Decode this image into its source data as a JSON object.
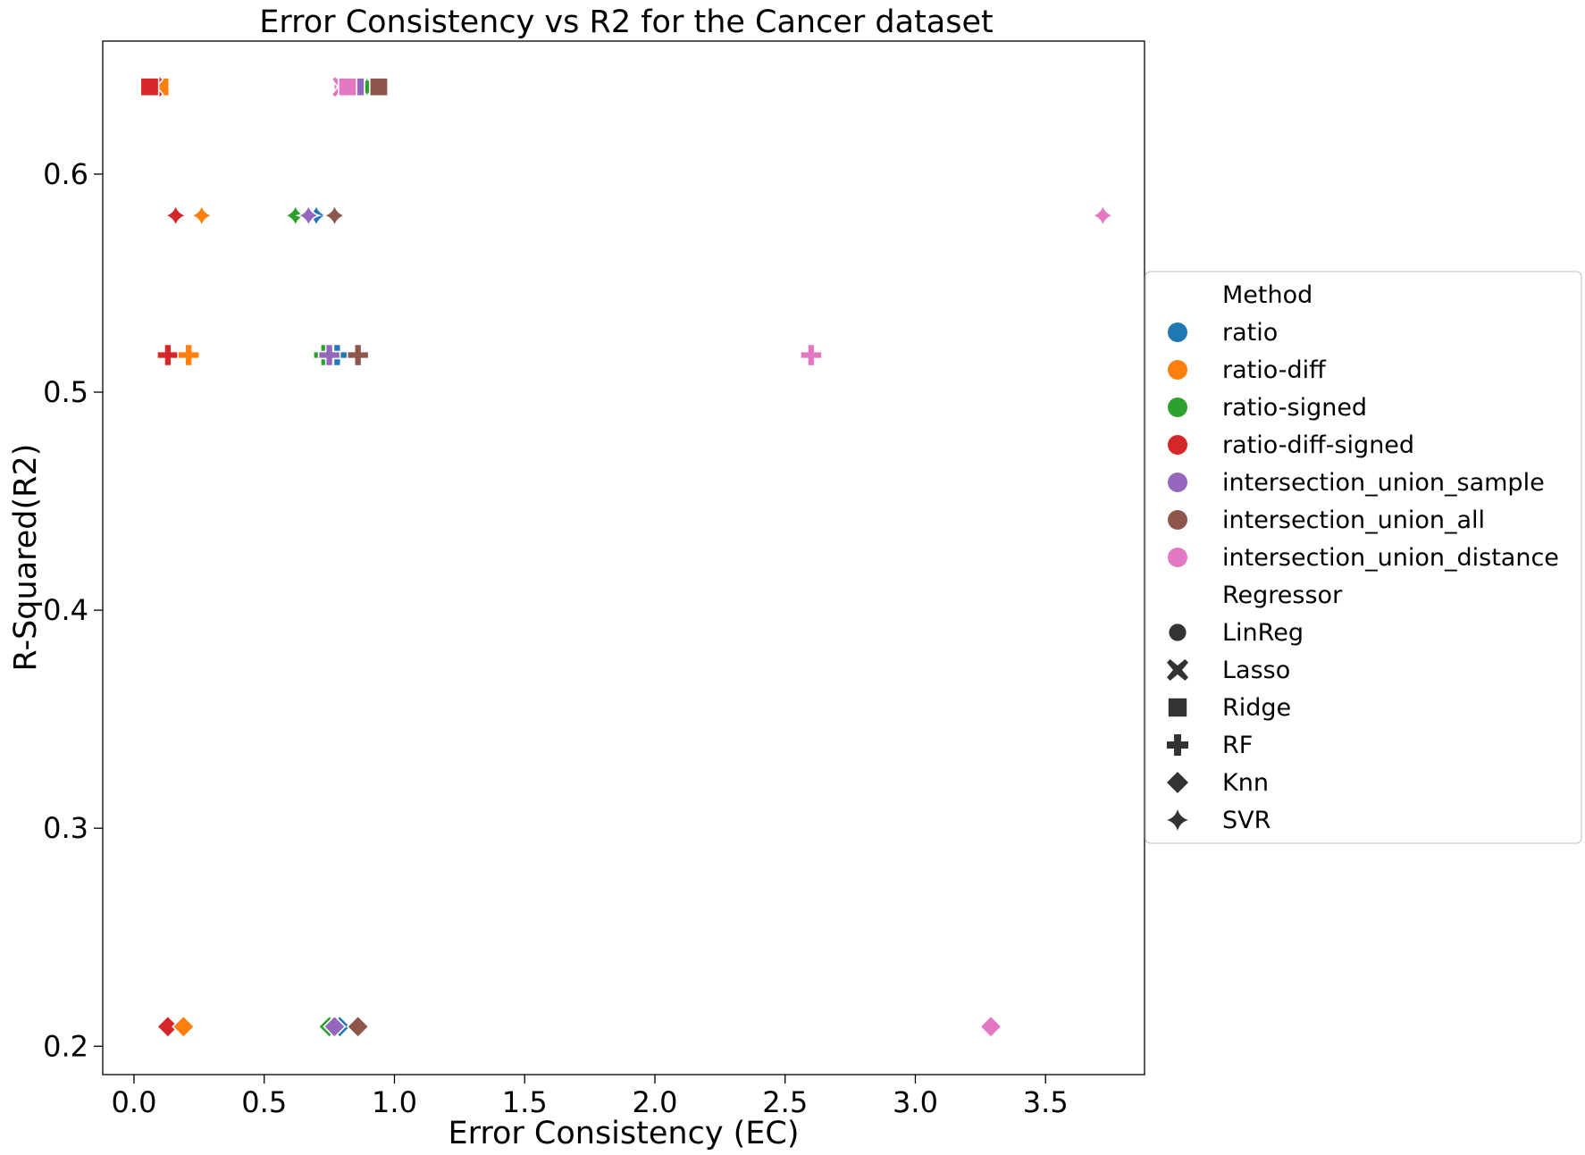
{
  "chart_data": {
    "type": "scatter",
    "title": "Error Consistency vs R2 for the Cancer dataset",
    "xlabel": "Error Consistency (EC)",
    "ylabel": "R-Squared(R2)",
    "xlim": [
      -0.12,
      3.88
    ],
    "ylim": [
      0.187,
      0.661
    ],
    "xticks": [
      0.0,
      0.5,
      1.0,
      1.5,
      2.0,
      2.5,
      3.0,
      3.5
    ],
    "xtick_labels": [
      "0.0",
      "0.5",
      "1.0",
      "1.5",
      "2.0",
      "2.5",
      "3.0",
      "3.5"
    ],
    "yticks": [
      0.2,
      0.3,
      0.4,
      0.5,
      0.6
    ],
    "ytick_labels": [
      "0.2",
      "0.3",
      "0.4",
      "0.5",
      "0.6"
    ],
    "grid": false,
    "legend_position": "center-right, outside the axes",
    "method_title": "Method",
    "regressor_title": "Regressor",
    "methods": [
      {
        "name": "ratio",
        "color": "#1f77b4"
      },
      {
        "name": "ratio-diff",
        "color": "#ff7f0e"
      },
      {
        "name": "ratio-signed",
        "color": "#2ca02c"
      },
      {
        "name": "ratio-diff-signed",
        "color": "#d62728"
      },
      {
        "name": "intersection_union_sample",
        "color": "#9467bd"
      },
      {
        "name": "intersection_union_all",
        "color": "#8c564b"
      },
      {
        "name": "intersection_union_distance",
        "color": "#e377c2"
      }
    ],
    "regressors": [
      {
        "name": "LinReg",
        "marker": "circle"
      },
      {
        "name": "Lasso",
        "marker": "x"
      },
      {
        "name": "Ridge",
        "marker": "square"
      },
      {
        "name": "RF",
        "marker": "plus"
      },
      {
        "name": "Knn",
        "marker": "diamond"
      },
      {
        "name": "SVR",
        "marker": "star4"
      }
    ],
    "points": [
      {
        "method": "ratio-diff",
        "regressor": "LinReg",
        "x": 0.1,
        "y": 0.64
      },
      {
        "method": "ratio-diff",
        "regressor": "Lasso",
        "x": 0.09,
        "y": 0.64
      },
      {
        "method": "ratio-diff",
        "regressor": "Ridge",
        "x": 0.1,
        "y": 0.64
      },
      {
        "method": "ratio-diff-signed",
        "regressor": "LinReg",
        "x": 0.06,
        "y": 0.64
      },
      {
        "method": "ratio-diff-signed",
        "regressor": "Lasso",
        "x": 0.07,
        "y": 0.64
      },
      {
        "method": "ratio-diff-signed",
        "regressor": "Ridge",
        "x": 0.06,
        "y": 0.64
      },
      {
        "method": "intersection_union_distance",
        "regressor": "LinReg",
        "x": 0.8,
        "y": 0.64
      },
      {
        "method": "intersection_union_distance",
        "regressor": "Lasso",
        "x": 0.8,
        "y": 0.64
      },
      {
        "method": "ratio",
        "regressor": "LinReg",
        "x": 0.87,
        "y": 0.64
      },
      {
        "method": "ratio",
        "regressor": "Lasso",
        "x": 0.87,
        "y": 0.64
      },
      {
        "method": "ratio",
        "regressor": "Ridge",
        "x": 0.87,
        "y": 0.64
      },
      {
        "method": "ratio-signed",
        "regressor": "LinReg",
        "x": 0.88,
        "y": 0.64
      },
      {
        "method": "ratio-signed",
        "regressor": "Lasso",
        "x": 0.88,
        "y": 0.64
      },
      {
        "method": "ratio-signed",
        "regressor": "Ridge",
        "x": 0.88,
        "y": 0.64
      },
      {
        "method": "intersection_union_sample",
        "regressor": "LinReg",
        "x": 0.85,
        "y": 0.64
      },
      {
        "method": "intersection_union_sample",
        "regressor": "Lasso",
        "x": 0.85,
        "y": 0.64
      },
      {
        "method": "intersection_union_sample",
        "regressor": "Ridge",
        "x": 0.85,
        "y": 0.64
      },
      {
        "method": "intersection_union_all",
        "regressor": "LinReg",
        "x": 0.94,
        "y": 0.64
      },
      {
        "method": "intersection_union_all",
        "regressor": "Lasso",
        "x": 0.94,
        "y": 0.64
      },
      {
        "method": "intersection_union_all",
        "regressor": "Ridge",
        "x": 0.94,
        "y": 0.64
      },
      {
        "method": "intersection_union_distance",
        "regressor": "Ridge",
        "x": 0.82,
        "y": 0.64
      },
      {
        "method": "ratio-diff-signed",
        "regressor": "SVR",
        "x": 0.16,
        "y": 0.581
      },
      {
        "method": "ratio-diff",
        "regressor": "SVR",
        "x": 0.26,
        "y": 0.581
      },
      {
        "method": "ratio-signed",
        "regressor": "SVR",
        "x": 0.62,
        "y": 0.581
      },
      {
        "method": "ratio",
        "regressor": "SVR",
        "x": 0.7,
        "y": 0.581
      },
      {
        "method": "intersection_union_sample",
        "regressor": "SVR",
        "x": 0.67,
        "y": 0.581
      },
      {
        "method": "intersection_union_all",
        "regressor": "SVR",
        "x": 0.77,
        "y": 0.581
      },
      {
        "method": "intersection_union_distance",
        "regressor": "SVR",
        "x": 3.72,
        "y": 0.581
      },
      {
        "method": "ratio-diff-signed",
        "regressor": "RF",
        "x": 0.13,
        "y": 0.517
      },
      {
        "method": "ratio-diff",
        "regressor": "RF",
        "x": 0.21,
        "y": 0.517
      },
      {
        "method": "ratio-signed",
        "regressor": "RF",
        "x": 0.73,
        "y": 0.517
      },
      {
        "method": "ratio",
        "regressor": "RF",
        "x": 0.78,
        "y": 0.517
      },
      {
        "method": "intersection_union_sample",
        "regressor": "RF",
        "x": 0.75,
        "y": 0.517
      },
      {
        "method": "intersection_union_all",
        "regressor": "RF",
        "x": 0.86,
        "y": 0.517
      },
      {
        "method": "intersection_union_distance",
        "regressor": "RF",
        "x": 2.6,
        "y": 0.517
      },
      {
        "method": "ratio-diff-signed",
        "regressor": "Knn",
        "x": 0.13,
        "y": 0.209
      },
      {
        "method": "ratio-diff",
        "regressor": "Knn",
        "x": 0.19,
        "y": 0.209
      },
      {
        "method": "ratio-signed",
        "regressor": "Knn",
        "x": 0.75,
        "y": 0.209
      },
      {
        "method": "ratio",
        "regressor": "Knn",
        "x": 0.79,
        "y": 0.209
      },
      {
        "method": "intersection_union_sample",
        "regressor": "Knn",
        "x": 0.77,
        "y": 0.209
      },
      {
        "method": "intersection_union_all",
        "regressor": "Knn",
        "x": 0.86,
        "y": 0.209
      },
      {
        "method": "intersection_union_distance",
        "regressor": "Knn",
        "x": 3.29,
        "y": 0.209
      }
    ]
  }
}
